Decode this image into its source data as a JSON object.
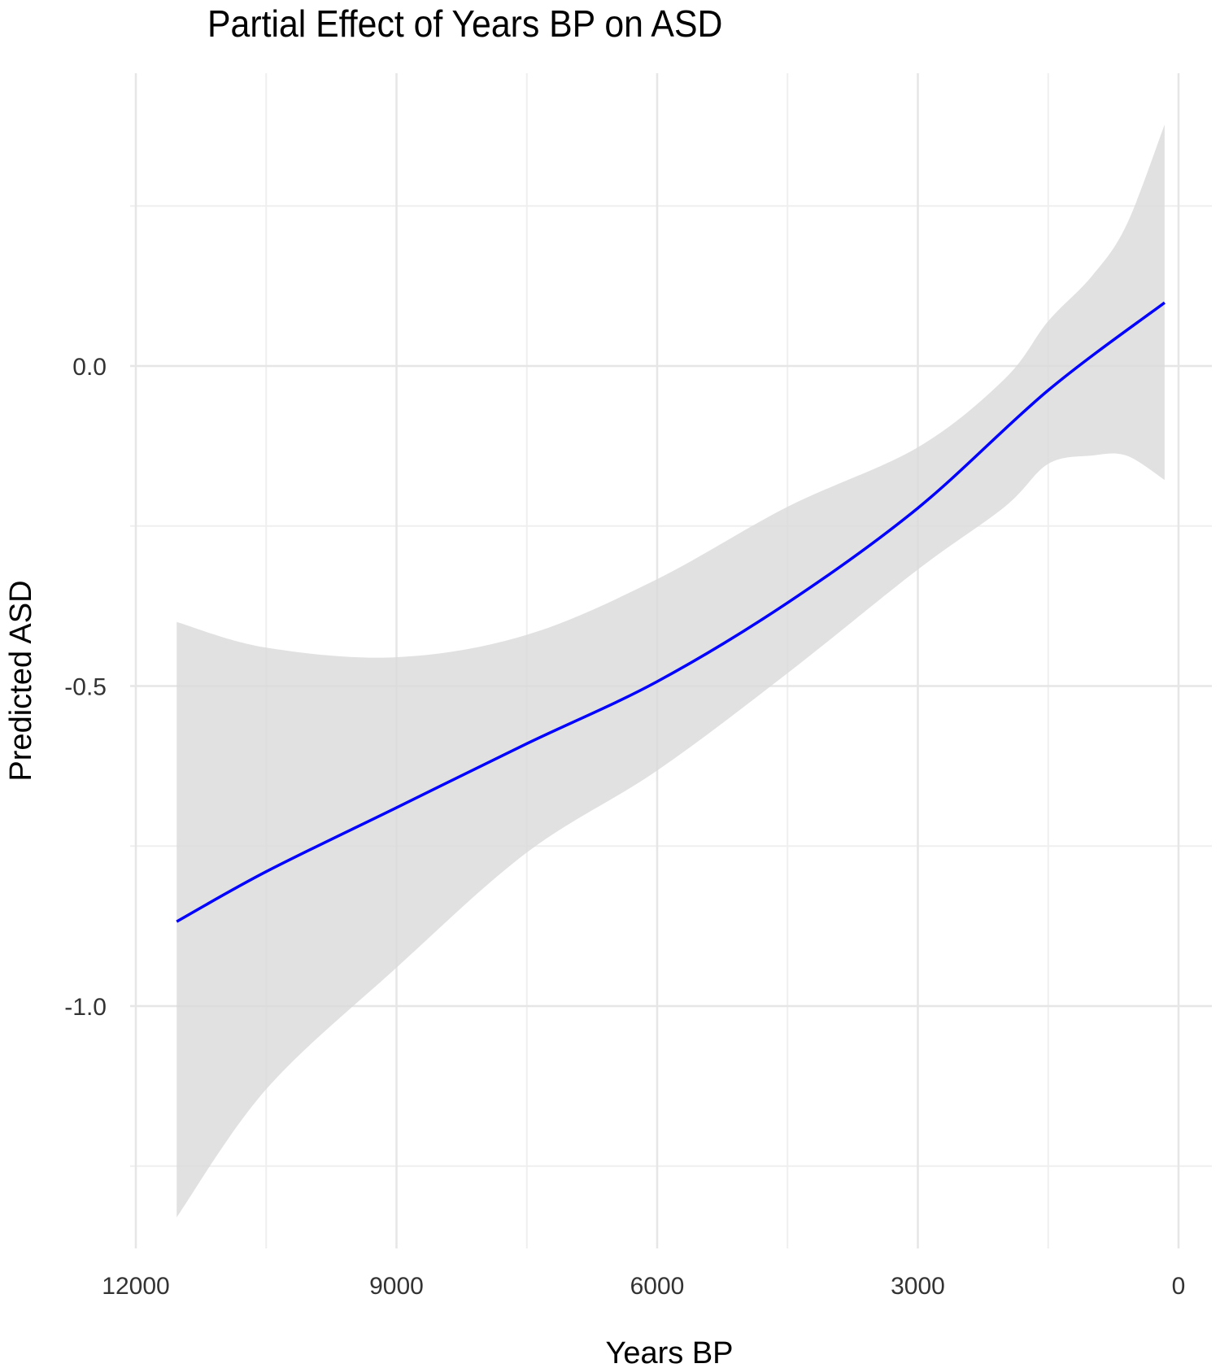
{
  "chart_data": {
    "type": "line",
    "title": "Partial Effect of Years BP on ASD",
    "xlabel": "Years BP",
    "ylabel": "Predicted ASD",
    "x_reversed": true,
    "xlim": [
      12200,
      -100
    ],
    "ylim": [
      -1.4,
      0.43
    ],
    "xticks": [
      12000,
      9000,
      6000,
      3000,
      0
    ],
    "xtick_labels": [
      "12000",
      "9000",
      "6000",
      "3000",
      "0"
    ],
    "yticks": [
      0.0,
      -0.5,
      -1.0
    ],
    "ytick_labels": [
      "0.0",
      "-0.5",
      "-1.0"
    ],
    "grid": true,
    "legend": null,
    "series": [
      {
        "name": "Predicted ASD (fit)",
        "color": "#0000ff",
        "x": [
          11530,
          10500,
          9000,
          7500,
          6000,
          4500,
          3000,
          1500,
          160
        ],
        "y": [
          -0.868,
          -0.79,
          -0.69,
          -0.59,
          -0.493,
          -0.37,
          -0.222,
          -0.038,
          0.099
        ]
      }
    ],
    "ribbon": {
      "name": "Confidence interval",
      "color": "#d9d9d9",
      "x": [
        11530,
        10500,
        9000,
        7500,
        6000,
        4500,
        3000,
        2000,
        1500,
        1000,
        600,
        160
      ],
      "upper": [
        -0.4,
        -0.44,
        -0.455,
        -0.42,
        -0.333,
        -0.22,
        -0.127,
        -0.02,
        0.07,
        0.14,
        0.22,
        0.377
      ],
      "lower": [
        -1.33,
        -1.13,
        -0.94,
        -0.76,
        -0.632,
        -0.48,
        -0.318,
        -0.22,
        -0.153,
        -0.14,
        -0.14,
        -0.178
      ]
    }
  }
}
